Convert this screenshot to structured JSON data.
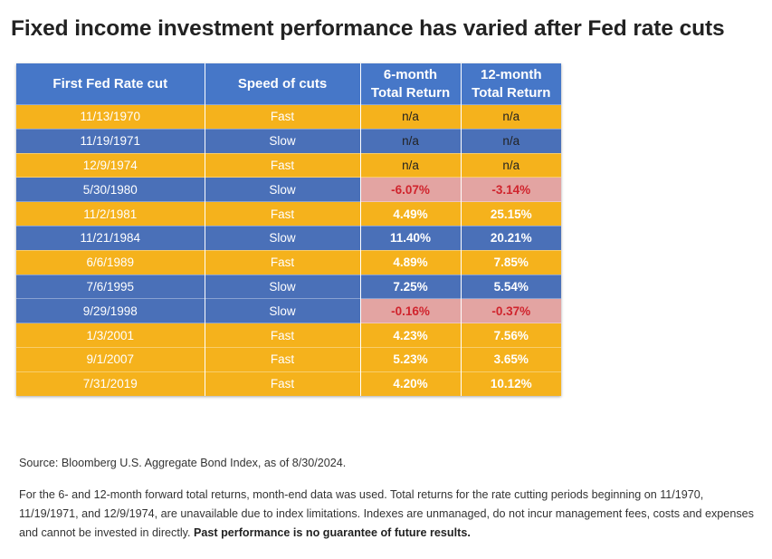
{
  "title": "Fixed income investment performance has varied after Fed rate cuts",
  "chart_data": {
    "type": "table",
    "columns": [
      {
        "line1": "First Fed Rate cut",
        "line2": ""
      },
      {
        "line1": "Speed of cuts",
        "line2": ""
      },
      {
        "line1": "6-month",
        "line2": "Total Return"
      },
      {
        "line1": "12-month",
        "line2": "Total Return"
      }
    ],
    "rows": [
      {
        "date": "11/13/1970",
        "speed": "Fast",
        "six": "n/a",
        "twelve": "n/a"
      },
      {
        "date": "11/19/1971",
        "speed": "Slow",
        "six": "n/a",
        "twelve": "n/a"
      },
      {
        "date": "12/9/1974",
        "speed": "Fast",
        "six": "n/a",
        "twelve": "n/a"
      },
      {
        "date": "5/30/1980",
        "speed": "Slow",
        "six": "-6.07%",
        "twelve": "-3.14%"
      },
      {
        "date": "11/2/1981",
        "speed": "Fast",
        "six": "4.49%",
        "twelve": "25.15%"
      },
      {
        "date": "11/21/1984",
        "speed": "Slow",
        "six": "11.40%",
        "twelve": "20.21%"
      },
      {
        "date": "6/6/1989",
        "speed": "Fast",
        "six": "4.89%",
        "twelve": "7.85%"
      },
      {
        "date": "7/6/1995",
        "speed": "Slow",
        "six": "7.25%",
        "twelve": "5.54%"
      },
      {
        "date": "9/29/1998",
        "speed": "Slow",
        "six": "-0.16%",
        "twelve": "-0.37%"
      },
      {
        "date": "1/3/2001",
        "speed": "Fast",
        "six": "4.23%",
        "twelve": "7.56%"
      },
      {
        "date": "9/1/2007",
        "speed": "Fast",
        "six": "5.23%",
        "twelve": "3.65%"
      },
      {
        "date": "7/31/2019",
        "speed": "Fast",
        "six": "4.20%",
        "twelve": "10.12%"
      }
    ],
    "colors": {
      "header": "#4677c8",
      "fast_row": "#f5b21c",
      "slow_row": "#4a70b8",
      "negative_bg": "#e3a4a2",
      "negative_text": "#d0242d"
    }
  },
  "notes": {
    "source": "Source: Bloomberg U.S. Aggregate Bond Index, as of 8/30/2024.",
    "disclaimer": "For the 6- and 12-month forward total returns, month-end data was used. Total returns for the rate cutting periods beginning on 11/1970, 11/19/1971, and 12/9/1974, are unavailable due to index limitations. Indexes are unmanaged, do not incur management fees, costs and expenses and cannot be invested in directly. ",
    "disclaimer_bold": "Past performance is no guarantee of future results."
  }
}
